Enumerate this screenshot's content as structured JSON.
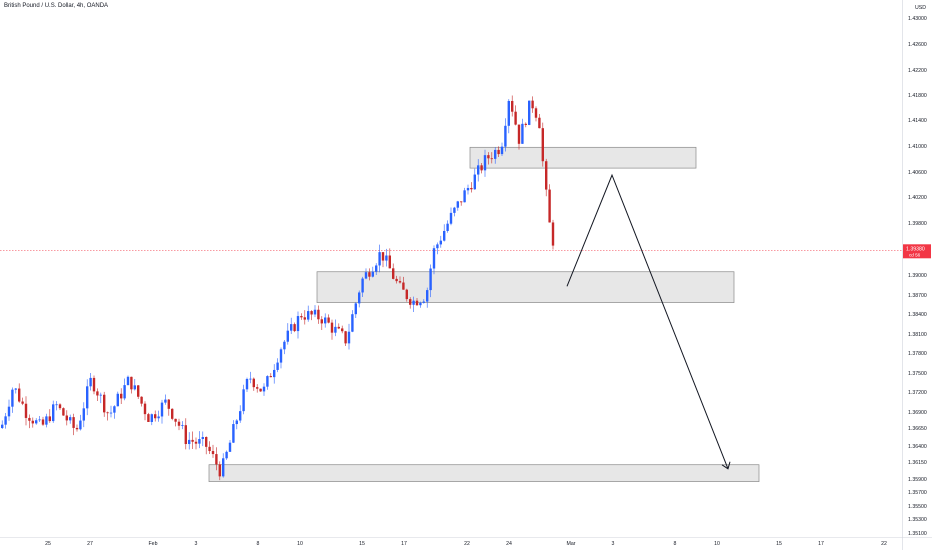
{
  "header": {
    "title": "British Pound / U.S. Dollar, 4h, OANDA"
  },
  "chart_data": {
    "type": "candlestick",
    "title": "British Pound / U.S. Dollar, 4h, OANDA",
    "y_axis_label": "USD",
    "y_ticks": [
      "1.43000",
      "1.42600",
      "1.42200",
      "1.41800",
      "1.41400",
      "1.41000",
      "1.40600",
      "1.40200",
      "1.39800",
      "1.39000",
      "1.38700",
      "1.38400",
      "1.38100",
      "1.37800",
      "1.37500",
      "1.37200",
      "1.36900",
      "1.36650",
      "1.36400",
      "1.36150",
      "1.35900",
      "1.35700",
      "1.35500",
      "1.35300",
      "1.35100"
    ],
    "x_ticks": [
      "25",
      "27",
      "Feb",
      "3",
      "8",
      "10",
      "15",
      "17",
      "22",
      "24",
      "Mar",
      "3",
      "8",
      "10",
      "15",
      "17",
      "22"
    ],
    "current_price": "1.39380",
    "countdown": "cd 56",
    "current_price_color": "#f23645",
    "up_color": "#2962ff",
    "down_color": "#c62828",
    "zones": [
      {
        "name": "resistance-zone",
        "from": 1.4066,
        "to": 1.4098
      },
      {
        "name": "middle-zone",
        "from": 1.3858,
        "to": 1.3905
      },
      {
        "name": "target-zone",
        "from": 1.3586,
        "to": 1.3611
      }
    ],
    "projection_path": [
      1.3883,
      1.4055,
      1.3605
    ]
  }
}
